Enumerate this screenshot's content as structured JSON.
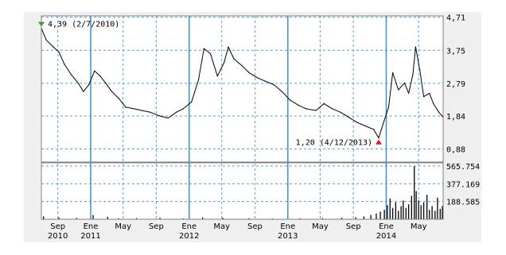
{
  "chart_data": [
    {
      "type": "line",
      "panel": "price",
      "title": "",
      "xlabel": "",
      "ylabel": "",
      "x_range": [
        "2010-07-02",
        "2014-07-31"
      ],
      "ylim": [
        0.5,
        4.75
      ],
      "y_ticks": [
        "4,71",
        "3,75",
        "2,79",
        "1,84",
        "0,88"
      ],
      "y_tick_values": [
        4.71,
        3.75,
        2.79,
        1.84,
        0.88
      ],
      "grid": true,
      "annotations": {
        "max": {
          "text": "4,39 (2/7/2010)",
          "date": "2010-07-02",
          "value": 4.39,
          "marker_color": "#22aa22"
        },
        "min": {
          "text": "1,20 (4/12/2013)",
          "date": "2013-12-04",
          "value": 1.2,
          "marker_color": "#ee1111"
        }
      },
      "series": [
        {
          "color": "#000000",
          "points": [
            [
              "2010-07-02",
              4.39
            ],
            [
              "2010-07-20",
              4.05
            ],
            [
              "2010-08-15",
              3.85
            ],
            [
              "2010-09-05",
              3.7
            ],
            [
              "2010-09-25",
              3.35
            ],
            [
              "2010-10-20",
              3.05
            ],
            [
              "2010-11-15",
              2.8
            ],
            [
              "2010-12-05",
              2.55
            ],
            [
              "2010-12-25",
              2.75
            ],
            [
              "2011-01-15",
              3.15
            ],
            [
              "2011-02-05",
              3.0
            ],
            [
              "2011-02-25",
              2.8
            ],
            [
              "2011-03-20",
              2.55
            ],
            [
              "2011-04-15",
              2.35
            ],
            [
              "2011-05-10",
              2.1
            ],
            [
              "2011-06-10",
              2.05
            ],
            [
              "2011-07-10",
              2.0
            ],
            [
              "2011-08-10",
              1.95
            ],
            [
              "2011-09-10",
              1.85
            ],
            [
              "2011-10-15",
              1.78
            ],
            [
              "2011-11-15",
              1.95
            ],
            [
              "2011-12-10",
              2.05
            ],
            [
              "2012-01-10",
              2.25
            ],
            [
              "2012-02-05",
              2.9
            ],
            [
              "2012-02-25",
              3.8
            ],
            [
              "2012-03-20",
              3.65
            ],
            [
              "2012-04-15",
              3.0
            ],
            [
              "2012-05-10",
              3.4
            ],
            [
              "2012-05-25",
              3.85
            ],
            [
              "2012-06-15",
              3.5
            ],
            [
              "2012-07-15",
              3.3
            ],
            [
              "2012-08-10",
              3.1
            ],
            [
              "2012-09-10",
              2.95
            ],
            [
              "2012-10-10",
              2.85
            ],
            [
              "2012-11-10",
              2.75
            ],
            [
              "2012-12-10",
              2.55
            ],
            [
              "2013-01-10",
              2.3
            ],
            [
              "2013-02-10",
              2.15
            ],
            [
              "2013-03-10",
              2.05
            ],
            [
              "2013-04-15",
              2.0
            ],
            [
              "2013-05-15",
              2.2
            ],
            [
              "2013-06-15",
              2.05
            ],
            [
              "2013-07-15",
              1.95
            ],
            [
              "2013-08-15",
              1.8
            ],
            [
              "2013-09-15",
              1.65
            ],
            [
              "2013-10-15",
              1.55
            ],
            [
              "2013-11-15",
              1.45
            ],
            [
              "2013-12-04",
              1.2
            ],
            [
              "2013-12-20",
              1.6
            ],
            [
              "2014-01-10",
              2.1
            ],
            [
              "2014-01-25",
              3.1
            ],
            [
              "2014-02-15",
              2.6
            ],
            [
              "2014-03-10",
              2.8
            ],
            [
              "2014-03-25",
              2.5
            ],
            [
              "2014-04-10",
              3.05
            ],
            [
              "2014-04-20",
              3.85
            ],
            [
              "2014-05-05",
              3.2
            ],
            [
              "2014-05-20",
              2.4
            ],
            [
              "2014-06-10",
              2.5
            ],
            [
              "2014-06-25",
              2.2
            ],
            [
              "2014-07-15",
              1.95
            ],
            [
              "2014-07-31",
              1.8
            ]
          ]
        }
      ]
    },
    {
      "type": "bar",
      "panel": "volume",
      "title": "",
      "xlabel": "",
      "ylabel": "",
      "ylim": [
        0,
        600000
      ],
      "y_ticks": [
        "565.754",
        "377.169",
        "188.585"
      ],
      "y_tick_values": [
        565754,
        377169,
        188585
      ],
      "grid": true,
      "series": [
        {
          "color": "#000000",
          "points": [
            [
              "2010-07-10",
              30000
            ],
            [
              "2010-09-05",
              20000
            ],
            [
              "2010-11-10",
              15000
            ],
            [
              "2011-01-10",
              45000
            ],
            [
              "2011-03-05",
              25000
            ],
            [
              "2011-04-15",
              10000
            ],
            [
              "2011-06-20",
              12000
            ],
            [
              "2011-09-15",
              15000
            ],
            [
              "2011-12-10",
              8000
            ],
            [
              "2012-02-20",
              20000
            ],
            [
              "2012-05-05",
              15000
            ],
            [
              "2012-08-10",
              10000
            ],
            [
              "2012-11-05",
              8000
            ],
            [
              "2013-02-15",
              10000
            ],
            [
              "2013-05-10",
              12000
            ],
            [
              "2013-07-20",
              15000
            ],
            [
              "2013-09-10",
              20000
            ],
            [
              "2013-10-10",
              30000
            ],
            [
              "2013-11-05",
              45000
            ],
            [
              "2013-11-25",
              60000
            ],
            [
              "2013-12-10",
              80000
            ],
            [
              "2013-12-25",
              100000
            ],
            [
              "2014-01-05",
              150000
            ],
            [
              "2014-01-15",
              220000
            ],
            [
              "2014-01-25",
              120000
            ],
            [
              "2014-02-05",
              180000
            ],
            [
              "2014-02-15",
              90000
            ],
            [
              "2014-02-25",
              140000
            ],
            [
              "2014-03-05",
              200000
            ],
            [
              "2014-03-15",
              120000
            ],
            [
              "2014-03-25",
              160000
            ],
            [
              "2014-04-05",
              250000
            ],
            [
              "2014-04-15",
              565000
            ],
            [
              "2014-04-22",
              300000
            ],
            [
              "2014-05-01",
              200000
            ],
            [
              "2014-05-10",
              150000
            ],
            [
              "2014-05-20",
              180000
            ],
            [
              "2014-06-01",
              260000
            ],
            [
              "2014-06-10",
              100000
            ],
            [
              "2014-06-20",
              140000
            ],
            [
              "2014-07-01",
              90000
            ],
            [
              "2014-07-10",
              230000
            ],
            [
              "2014-07-20",
              110000
            ],
            [
              "2014-07-28",
              140000
            ]
          ]
        }
      ]
    }
  ],
  "x_axis": {
    "ticks": [
      {
        "date": "2010-09-01",
        "line1": "Sep",
        "line2": "2010",
        "year_start": false
      },
      {
        "date": "2011-01-01",
        "line1": "Ene",
        "line2": "2011",
        "year_start": true
      },
      {
        "date": "2011-05-01",
        "line1": "May",
        "line2": "",
        "year_start": false
      },
      {
        "date": "2011-09-01",
        "line1": "Sep",
        "line2": "",
        "year_start": false
      },
      {
        "date": "2012-01-01",
        "line1": "Ene",
        "line2": "2012",
        "year_start": true
      },
      {
        "date": "2012-05-01",
        "line1": "May",
        "line2": "",
        "year_start": false
      },
      {
        "date": "2012-09-01",
        "line1": "Sep",
        "line2": "",
        "year_start": false
      },
      {
        "date": "2013-01-01",
        "line1": "Ene",
        "line2": "2013",
        "year_start": true
      },
      {
        "date": "2013-05-01",
        "line1": "May",
        "line2": "",
        "year_start": false
      },
      {
        "date": "2013-09-01",
        "line1": "Sep",
        "line2": "",
        "year_start": false
      },
      {
        "date": "2014-01-01",
        "line1": "Ene",
        "line2": "2014",
        "year_start": true
      },
      {
        "date": "2014-05-01",
        "line1": "May",
        "line2": "",
        "year_start": false
      }
    ]
  },
  "colors": {
    "background": "#ffffff",
    "plot_background": "#ffffff",
    "frame": "#808080",
    "grid_minor": "#4aa3df",
    "grid_major": "#3d8fd1",
    "line": "#000000"
  }
}
